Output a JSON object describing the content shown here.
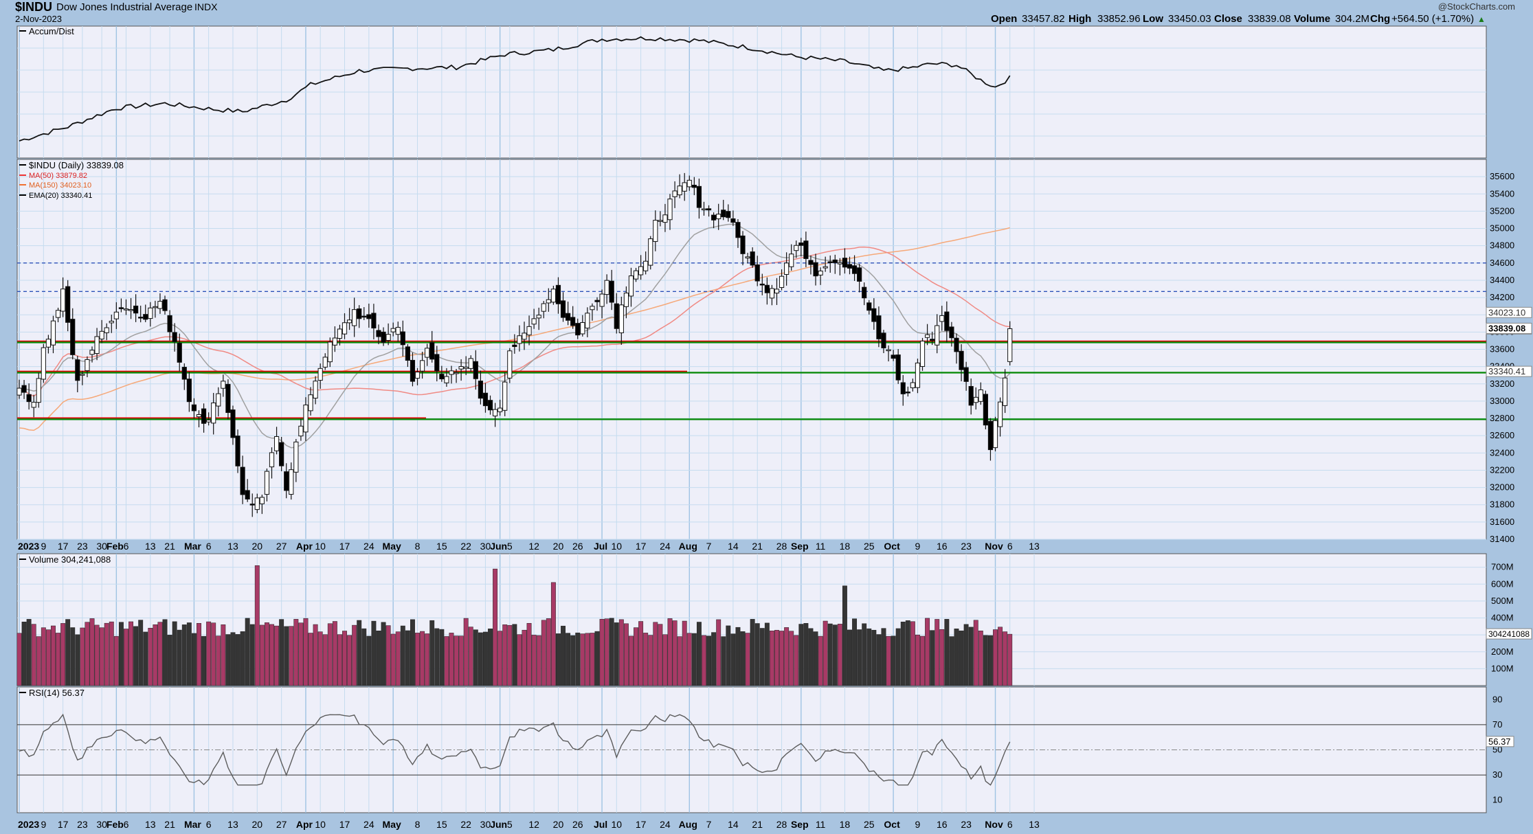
{
  "header": {
    "symbol": "$INDU",
    "name": "Dow Jones Industrial Average",
    "exchange": "INDX",
    "date": "2-Nov-2023",
    "copyright": "@StockCharts.com",
    "open_label": "Open",
    "open": "33457.82",
    "high_label": "High",
    "high": "33852.96",
    "low_label": "Low",
    "low": "33450.03",
    "close_label": "Close",
    "close": "33839.08",
    "volume_label": "Volume",
    "volume": "304.2M",
    "chg_label": "Chg",
    "chg": "+564.50 (+1.70%)",
    "chg_arrow": "▲"
  },
  "panels": {
    "accum_label": "Accum/Dist",
    "price_label": "$INDU (Daily) 33839.08",
    "ma50_label": "MA(50) 33879.82",
    "ma150_label": "MA(150) 34023.10",
    "ema20_label": "EMA(20) 33340.41",
    "volume_label": "Volume 304,241,088",
    "rsi_label": "RSI(14) 56.37"
  },
  "colors": {
    "background": "#a9c4e0",
    "panel": "#eeeff9",
    "grid": "#bdd8ec",
    "up_candle": "#ffffff",
    "down_candle": "#000000",
    "ma50": "#f08a84",
    "ma150": "#f6a878",
    "ema20": "#a0a0a0",
    "resistance_line": "#e00000",
    "support_line": "#0a8a0a",
    "dashed_line": "#2c52b8",
    "volume_up": "#a83a66",
    "volume_down": "#353535",
    "rsi_line": "#5c5c5c",
    "rsi_fill": "#7a9a80"
  },
  "x_axis_labels": [
    {
      "i": 0,
      "t": "2023",
      "b": true
    },
    {
      "i": 5,
      "t": "9"
    },
    {
      "i": 9,
      "t": "17"
    },
    {
      "i": 13,
      "t": "23"
    },
    {
      "i": 17,
      "t": "30"
    },
    {
      "i": 20,
      "t": "Feb",
      "b": true
    },
    {
      "i": 22,
      "t": "6"
    },
    {
      "i": 27,
      "t": "13"
    },
    {
      "i": 31,
      "t": "21"
    },
    {
      "i": 36,
      "t": "Mar",
      "b": true
    },
    {
      "i": 39,
      "t": "6"
    },
    {
      "i": 44,
      "t": "13"
    },
    {
      "i": 49,
      "t": "20"
    },
    {
      "i": 54,
      "t": "27"
    },
    {
      "i": 59,
      "t": "Apr",
      "b": true
    },
    {
      "i": 62,
      "t": "10"
    },
    {
      "i": 67,
      "t": "17"
    },
    {
      "i": 72,
      "t": "24"
    },
    {
      "i": 77,
      "t": "May",
      "b": true
    },
    {
      "i": 82,
      "t": "8"
    },
    {
      "i": 87,
      "t": "15"
    },
    {
      "i": 92,
      "t": "22"
    },
    {
      "i": 96,
      "t": "30"
    },
    {
      "i": 99,
      "t": "Jun",
      "b": true
    },
    {
      "i": 101,
      "t": "5"
    },
    {
      "i": 106,
      "t": "12"
    },
    {
      "i": 111,
      "t": "20"
    },
    {
      "i": 115,
      "t": "26"
    },
    {
      "i": 120,
      "t": "Jul",
      "b": true
    },
    {
      "i": 123,
      "t": "10"
    },
    {
      "i": 128,
      "t": "17"
    },
    {
      "i": 133,
      "t": "24"
    },
    {
      "i": 138,
      "t": "Aug",
      "b": true
    },
    {
      "i": 142,
      "t": "7"
    },
    {
      "i": 147,
      "t": "14"
    },
    {
      "i": 152,
      "t": "21"
    },
    {
      "i": 157,
      "t": "28"
    },
    {
      "i": 161,
      "t": "Sep",
      "b": true
    },
    {
      "i": 165,
      "t": "11"
    },
    {
      "i": 170,
      "t": "18"
    },
    {
      "i": 175,
      "t": "25"
    },
    {
      "i": 180,
      "t": "Oct",
      "b": true
    },
    {
      "i": 185,
      "t": "9"
    },
    {
      "i": 190,
      "t": "16"
    },
    {
      "i": 195,
      "t": "23"
    },
    {
      "i": 201,
      "t": "Nov",
      "b": true
    },
    {
      "i": 204,
      "t": "6"
    },
    {
      "i": 209,
      "t": "13"
    }
  ],
  "price_axis_ticks": [
    "31400",
    "31600",
    "31800",
    "32000",
    "32200",
    "32400",
    "32600",
    "32800",
    "33000",
    "33200",
    "33400",
    "33600",
    "33800",
    "34000",
    "34200",
    "34400",
    "34600",
    "34800",
    "35000",
    "35200",
    "35400",
    "35600"
  ],
  "price_axis_badges": [
    {
      "v": 34023.1,
      "t": "34023.10",
      "bold": false
    },
    {
      "v": 33879.82,
      "t": "33879.82",
      "bold": false
    },
    {
      "v": 33839.08,
      "t": "33839.08",
      "bold": true
    },
    {
      "v": 33340.41,
      "t": "33340.41",
      "bold": false
    }
  ],
  "volume_axis_ticks": [
    "100M",
    "200M",
    "300M",
    "400M",
    "500M",
    "600M",
    "700M"
  ],
  "volume_badge": "304241088",
  "rsi_axis_ticks": [
    "10",
    "30",
    "50",
    "70",
    "90"
  ],
  "rsi_badge": "56.37",
  "chart_data": {
    "type": "candlestick",
    "title": "$INDU Dow Jones Industrial Average INDX",
    "price_range": [
      31400,
      35800
    ],
    "horizontal_lines": [
      {
        "value": 33690,
        "color": "red"
      },
      {
        "value": 33680,
        "color": "green"
      },
      {
        "value": 33340,
        "color": "red"
      },
      {
        "value": 33330,
        "color": "green"
      },
      {
        "value": 32800,
        "color": "red"
      },
      {
        "value": 32790,
        "color": "green"
      },
      {
        "value": 34600,
        "color": "blue",
        "style": "dashed"
      },
      {
        "value": 34270,
        "color": "blue",
        "style": "dashed"
      }
    ],
    "close_anchors": [
      {
        "i": 0,
        "v": 33150
      },
      {
        "i": 3,
        "v": 33000
      },
      {
        "i": 5,
        "v": 33600
      },
      {
        "i": 7,
        "v": 33900
      },
      {
        "i": 9,
        "v": 34250
      },
      {
        "i": 12,
        "v": 33200
      },
      {
        "i": 14,
        "v": 33500
      },
      {
        "i": 18,
        "v": 33900
      },
      {
        "i": 21,
        "v": 34100
      },
      {
        "i": 26,
        "v": 34000
      },
      {
        "i": 29,
        "v": 34150
      },
      {
        "i": 32,
        "v": 33700
      },
      {
        "i": 35,
        "v": 33050
      },
      {
        "i": 38,
        "v": 32700
      },
      {
        "i": 42,
        "v": 33250
      },
      {
        "i": 44,
        "v": 32550
      },
      {
        "i": 46,
        "v": 31950
      },
      {
        "i": 48,
        "v": 31750
      },
      {
        "i": 50,
        "v": 31900
      },
      {
        "i": 53,
        "v": 32600
      },
      {
        "i": 55,
        "v": 32000
      },
      {
        "i": 57,
        "v": 32500
      },
      {
        "i": 60,
        "v": 33100
      },
      {
        "i": 63,
        "v": 33550
      },
      {
        "i": 66,
        "v": 33800
      },
      {
        "i": 69,
        "v": 34050
      },
      {
        "i": 72,
        "v": 33900
      },
      {
        "i": 75,
        "v": 33700
      },
      {
        "i": 78,
        "v": 33900
      },
      {
        "i": 81,
        "v": 33200
      },
      {
        "i": 84,
        "v": 33600
      },
      {
        "i": 87,
        "v": 33300
      },
      {
        "i": 90,
        "v": 33300
      },
      {
        "i": 93,
        "v": 33450
      },
      {
        "i": 96,
        "v": 32900
      },
      {
        "i": 99,
        "v": 32950
      },
      {
        "i": 101,
        "v": 33600
      },
      {
        "i": 104,
        "v": 33750
      },
      {
        "i": 107,
        "v": 34050
      },
      {
        "i": 110,
        "v": 34300
      },
      {
        "i": 112,
        "v": 34000
      },
      {
        "i": 115,
        "v": 33800
      },
      {
        "i": 118,
        "v": 34100
      },
      {
        "i": 121,
        "v": 34400
      },
      {
        "i": 123,
        "v": 33900
      },
      {
        "i": 126,
        "v": 34500
      },
      {
        "i": 129,
        "v": 34600
      },
      {
        "i": 131,
        "v": 35050
      },
      {
        "i": 134,
        "v": 35300
      },
      {
        "i": 136,
        "v": 35450
      },
      {
        "i": 138,
        "v": 35550
      },
      {
        "i": 140,
        "v": 35300
      },
      {
        "i": 143,
        "v": 35150
      },
      {
        "i": 146,
        "v": 35150
      },
      {
        "i": 149,
        "v": 34750
      },
      {
        "i": 152,
        "v": 34450
      },
      {
        "i": 154,
        "v": 34300
      },
      {
        "i": 156,
        "v": 34350
      },
      {
        "i": 158,
        "v": 34600
      },
      {
        "i": 160,
        "v": 34800
      },
      {
        "i": 162,
        "v": 34700
      },
      {
        "i": 164,
        "v": 34500
      },
      {
        "i": 166,
        "v": 34600
      },
      {
        "i": 168,
        "v": 34650
      },
      {
        "i": 170,
        "v": 34600
      },
      {
        "i": 172,
        "v": 34500
      },
      {
        "i": 175,
        "v": 34050
      },
      {
        "i": 177,
        "v": 33700
      },
      {
        "i": 180,
        "v": 33500
      },
      {
        "i": 182,
        "v": 33050
      },
      {
        "i": 184,
        "v": 33200
      },
      {
        "i": 186,
        "v": 33700
      },
      {
        "i": 188,
        "v": 33750
      },
      {
        "i": 190,
        "v": 34000
      },
      {
        "i": 192,
        "v": 33700
      },
      {
        "i": 194,
        "v": 33400
      },
      {
        "i": 196,
        "v": 33000
      },
      {
        "i": 198,
        "v": 33100
      },
      {
        "i": 200,
        "v": 32450
      },
      {
        "i": 201,
        "v": 32800
      },
      {
        "i": 202,
        "v": 33050
      },
      {
        "i": 203,
        "v": 33274
      },
      {
        "i": 204,
        "v": 33839
      }
    ],
    "accum_dist_anchors": [
      {
        "i": 0,
        "v": 10
      },
      {
        "i": 10,
        "v": 22
      },
      {
        "i": 20,
        "v": 38
      },
      {
        "i": 30,
        "v": 42
      },
      {
        "i": 40,
        "v": 37
      },
      {
        "i": 46,
        "v": 35
      },
      {
        "i": 55,
        "v": 45
      },
      {
        "i": 60,
        "v": 58
      },
      {
        "i": 70,
        "v": 70
      },
      {
        "i": 80,
        "v": 72
      },
      {
        "i": 90,
        "v": 73
      },
      {
        "i": 100,
        "v": 84
      },
      {
        "i": 110,
        "v": 88
      },
      {
        "i": 120,
        "v": 97
      },
      {
        "i": 130,
        "v": 98
      },
      {
        "i": 140,
        "v": 96
      },
      {
        "i": 150,
        "v": 90
      },
      {
        "i": 160,
        "v": 82
      },
      {
        "i": 170,
        "v": 78
      },
      {
        "i": 178,
        "v": 70
      },
      {
        "i": 183,
        "v": 72
      },
      {
        "i": 188,
        "v": 76
      },
      {
        "i": 193,
        "v": 75
      },
      {
        "i": 198,
        "v": 62
      },
      {
        "i": 201,
        "v": 56
      },
      {
        "i": 204,
        "v": 64
      }
    ],
    "volume_spikes_millions": [
      {
        "i": 49,
        "v": 710
      },
      {
        "i": 98,
        "v": 690
      },
      {
        "i": 110,
        "v": 610
      },
      {
        "i": 170,
        "v": 590
      }
    ],
    "volume_last_millions": 304.2,
    "rsi_range": [
      0,
      100
    ],
    "rsi_levels": [
      30,
      50,
      70
    ],
    "rsi_last": 56.37,
    "ma": [
      {
        "name": "MA(50)",
        "value": 33879.82
      },
      {
        "name": "MA(150)",
        "value": 34023.1
      },
      {
        "name": "EMA(20)",
        "value": 33340.41
      }
    ]
  }
}
